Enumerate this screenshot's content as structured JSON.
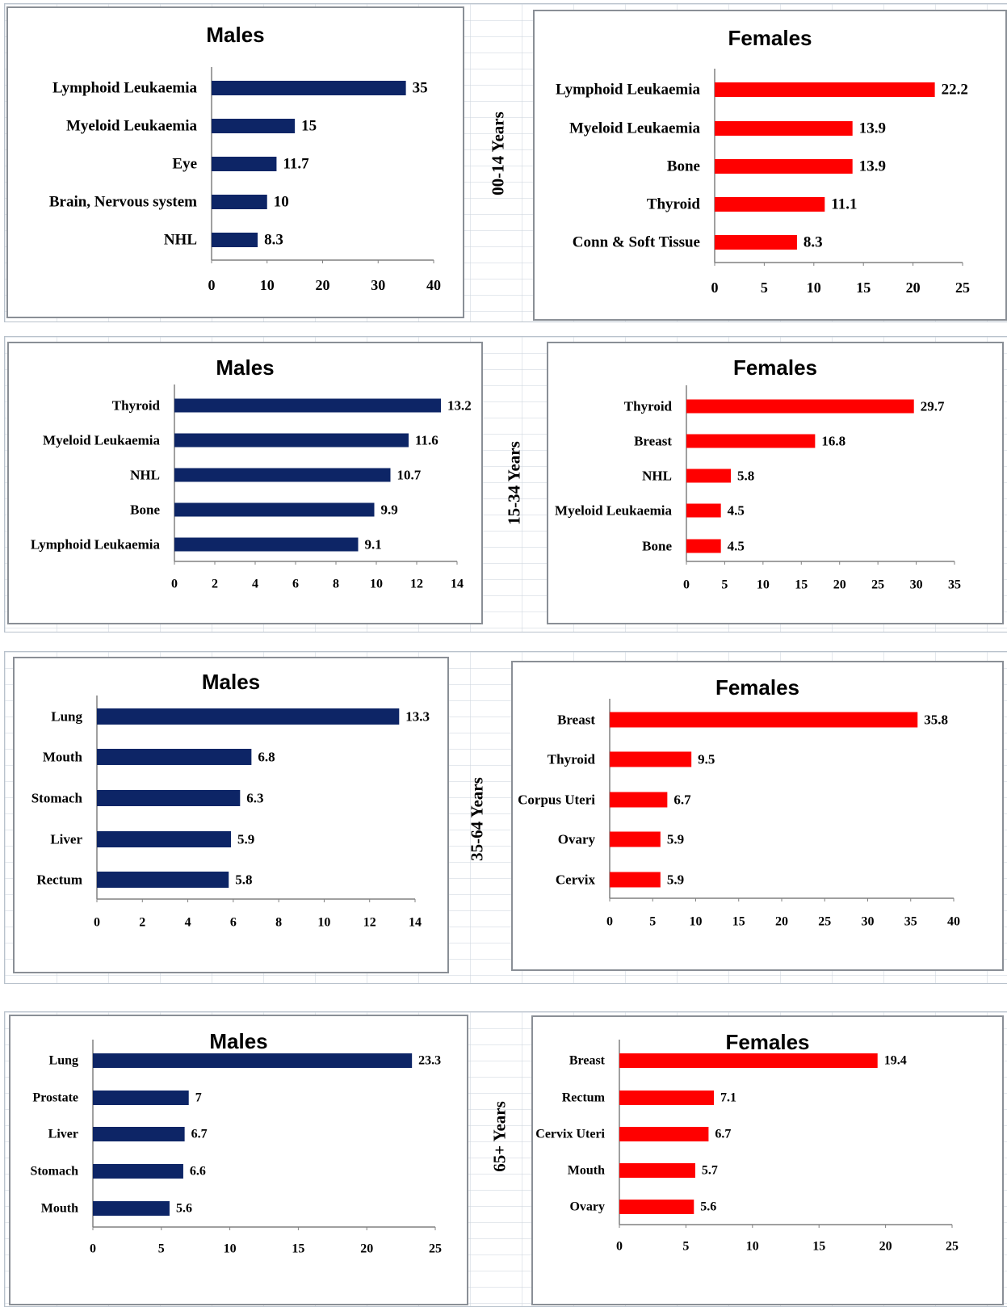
{
  "colors": {
    "males": "#0d2566",
    "females": "#ff0000",
    "axis": "#808080"
  },
  "chart_data": [
    {
      "type": "bar",
      "orientation": "horizontal",
      "group": "00-14 Years",
      "title": "Males",
      "categories": [
        "Lymphoid Leukaemia",
        "Myeloid Leukaemia",
        "Eye",
        "Brain, Nervous system",
        "NHL"
      ],
      "values": [
        35,
        15,
        11.7,
        10,
        8.3
      ],
      "value_labels": [
        "35",
        "15",
        "11.7",
        "10",
        "8.3"
      ],
      "xlim": [
        0,
        40
      ],
      "ticks": [
        "0",
        "10",
        "20",
        "30",
        "40"
      ],
      "color": "#0d2566"
    },
    {
      "type": "bar",
      "orientation": "horizontal",
      "group": "00-14 Years",
      "title": "Females",
      "categories": [
        "Lymphoid Leukaemia",
        "Myeloid Leukaemia",
        "Bone",
        "Thyroid",
        "Conn & Soft Tissue"
      ],
      "values": [
        22.2,
        13.9,
        13.9,
        11.1,
        8.3
      ],
      "value_labels": [
        "22.2",
        "13.9",
        "13.9",
        "11.1",
        "8.3"
      ],
      "xlim": [
        0,
        25
      ],
      "ticks": [
        "0",
        "5",
        "10",
        "15",
        "20",
        "25"
      ],
      "color": "#ff0000"
    },
    {
      "type": "bar",
      "orientation": "horizontal",
      "group": "15-34 Years",
      "title": "Males",
      "categories": [
        "Thyroid",
        "Myeloid Leukaemia",
        "NHL",
        "Bone",
        "Lymphoid Leukaemia"
      ],
      "values": [
        13.2,
        11.6,
        10.7,
        9.9,
        9.1
      ],
      "value_labels": [
        "13.2",
        "11.6",
        "10.7",
        "9.9",
        "9.1"
      ],
      "xlim": [
        0,
        14
      ],
      "ticks": [
        "0",
        "2",
        "4",
        "6",
        "8",
        "10",
        "12",
        "14"
      ],
      "color": "#0d2566"
    },
    {
      "type": "bar",
      "orientation": "horizontal",
      "group": "15-34 Years",
      "title": "Females",
      "categories": [
        "Thyroid",
        "Breast",
        "NHL",
        "Myeloid Leukaemia",
        "Bone"
      ],
      "values": [
        29.7,
        16.8,
        5.8,
        4.5,
        4.5
      ],
      "value_labels": [
        "29.7",
        "16.8",
        "5.8",
        "4.5",
        "4.5"
      ],
      "xlim": [
        0,
        35
      ],
      "ticks": [
        "0",
        "5",
        "10",
        "15",
        "20",
        "25",
        "30",
        "35"
      ],
      "color": "#ff0000"
    },
    {
      "type": "bar",
      "orientation": "horizontal",
      "group": "35-64 Years",
      "title": "Males",
      "categories": [
        "Lung",
        "Mouth",
        "Stomach",
        "Liver",
        "Rectum"
      ],
      "values": [
        13.3,
        6.8,
        6.3,
        5.9,
        5.8
      ],
      "value_labels": [
        "13.3",
        "6.8",
        "6.3",
        "5.9",
        "5.8"
      ],
      "xlim": [
        0,
        14
      ],
      "ticks": [
        "0",
        "2",
        "4",
        "6",
        "8",
        "10",
        "12",
        "14"
      ],
      "color": "#0d2566"
    },
    {
      "type": "bar",
      "orientation": "horizontal",
      "group": "35-64 Years",
      "title": "Females",
      "categories": [
        "Breast",
        "Thyroid",
        "Corpus Uteri",
        "Ovary",
        "Cervix"
      ],
      "values": [
        35.8,
        9.5,
        6.7,
        5.9,
        5.9
      ],
      "value_labels": [
        "35.8",
        "9.5",
        "6.7",
        "5.9",
        "5.9"
      ],
      "xlim": [
        0,
        40
      ],
      "ticks": [
        "0",
        "5",
        "10",
        "15",
        "20",
        "25",
        "30",
        "35",
        "40"
      ],
      "color": "#ff0000"
    },
    {
      "type": "bar",
      "orientation": "horizontal",
      "group": "65+ Years",
      "title": "Males",
      "categories": [
        "Lung",
        "Prostate",
        "Liver",
        "Stomach",
        "Mouth"
      ],
      "values": [
        23.3,
        7,
        6.7,
        6.6,
        5.6
      ],
      "value_labels": [
        "23.3",
        "7",
        "6.7",
        "6.6",
        "5.6"
      ],
      "xlim": [
        0,
        25
      ],
      "ticks": [
        "0",
        "5",
        "10",
        "15",
        "20",
        "25"
      ],
      "color": "#0d2566"
    },
    {
      "type": "bar",
      "orientation": "horizontal",
      "group": "65+ Years",
      "title": "Females",
      "categories": [
        "Breast",
        "Rectum",
        "Cervix Uteri",
        "Mouth",
        "Ovary"
      ],
      "values": [
        19.4,
        7.1,
        6.7,
        5.7,
        5.6
      ],
      "value_labels": [
        "19.4",
        "7.1",
        "6.7",
        "5.7",
        "5.6"
      ],
      "xlim": [
        0,
        25
      ],
      "ticks": [
        "0",
        "5",
        "10",
        "15",
        "20",
        "25"
      ],
      "color": "#ff0000"
    }
  ]
}
